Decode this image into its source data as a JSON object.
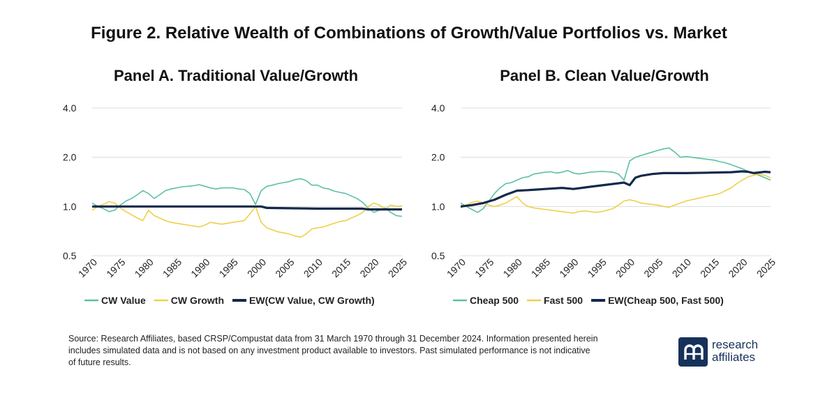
{
  "figure_title": "Figure 2. Relative Wealth of Combinations of Growth/Value Portfolios vs. Market",
  "source_note": "Source: Research Affiliates, based CRSP/Compustat data from 31 March 1970 through 31 December 2024. Information presented herein includes simulated data and is not based on any investment product available to investors. Past simulated performance is not indicative of future results.",
  "logo": {
    "line1": "research",
    "line2": "affiliates",
    "mark": "ꭆ"
  },
  "chart_data": [
    {
      "type": "line",
      "title": "Panel A. Traditional Value/Growth",
      "y_scale": "log",
      "ylim": [
        0.5,
        4.0
      ],
      "yticks": [
        {
          "v": 0.5,
          "label": "0.5"
        },
        {
          "v": 1.0,
          "label": "1.0"
        },
        {
          "v": 2.0,
          "label": "2.0"
        },
        {
          "v": 4.0,
          "label": "4.0"
        }
      ],
      "xlim": [
        1970,
        2025
      ],
      "xticks": [
        "1970",
        "1975",
        "1980",
        "1985",
        "1990",
        "1995",
        "2000",
        "2005",
        "2010",
        "2015",
        "2020",
        "2025"
      ],
      "legend_position": "bottom",
      "series": [
        {
          "name": "CW Value",
          "color": "#5cbfa6",
          "width": 1.6,
          "x": [
            1970,
            1971,
            1972,
            1973,
            1974,
            1975,
            1976,
            1977,
            1978,
            1979,
            1980,
            1981,
            1982,
            1983,
            1984,
            1985,
            1986,
            1987,
            1988,
            1989,
            1990,
            1991,
            1992,
            1993,
            1994,
            1995,
            1996,
            1997,
            1998,
            1999,
            2000,
            2001,
            2002,
            2003,
            2004,
            2005,
            2006,
            2007,
            2008,
            2009,
            2010,
            2011,
            2012,
            2013,
            2014,
            2015,
            2016,
            2017,
            2018,
            2019,
            2020,
            2021,
            2022,
            2023,
            2024,
            2025
          ],
          "y": [
            1.05,
            1.0,
            0.97,
            0.93,
            0.95,
            1.02,
            1.08,
            1.12,
            1.18,
            1.25,
            1.2,
            1.12,
            1.18,
            1.25,
            1.28,
            1.3,
            1.32,
            1.33,
            1.34,
            1.36,
            1.33,
            1.3,
            1.28,
            1.3,
            1.3,
            1.3,
            1.28,
            1.27,
            1.2,
            1.03,
            1.25,
            1.33,
            1.35,
            1.38,
            1.4,
            1.42,
            1.46,
            1.48,
            1.44,
            1.35,
            1.35,
            1.3,
            1.28,
            1.24,
            1.22,
            1.2,
            1.16,
            1.12,
            1.06,
            0.98,
            0.92,
            0.95,
            0.98,
            0.92,
            0.88,
            0.87
          ]
        },
        {
          "name": "CW Growth",
          "color": "#eed04a",
          "width": 1.6,
          "x": [
            1970,
            1971,
            1972,
            1973,
            1974,
            1975,
            1976,
            1977,
            1978,
            1979,
            1980,
            1981,
            1982,
            1983,
            1984,
            1985,
            1986,
            1987,
            1988,
            1989,
            1990,
            1991,
            1992,
            1993,
            1994,
            1995,
            1996,
            1997,
            1998,
            1999,
            2000,
            2001,
            2002,
            2003,
            2004,
            2005,
            2006,
            2007,
            2008,
            2009,
            2010,
            2011,
            2012,
            2013,
            2014,
            2015,
            2016,
            2017,
            2018,
            2019,
            2020,
            2021,
            2022,
            2023,
            2024,
            2025
          ],
          "y": [
            0.95,
            1.0,
            1.03,
            1.07,
            1.05,
            0.98,
            0.93,
            0.89,
            0.85,
            0.82,
            0.95,
            0.88,
            0.85,
            0.82,
            0.8,
            0.79,
            0.78,
            0.77,
            0.76,
            0.75,
            0.77,
            0.8,
            0.79,
            0.78,
            0.79,
            0.8,
            0.81,
            0.82,
            0.9,
            1.0,
            0.8,
            0.74,
            0.72,
            0.7,
            0.69,
            0.68,
            0.66,
            0.65,
            0.68,
            0.73,
            0.74,
            0.75,
            0.77,
            0.79,
            0.81,
            0.82,
            0.85,
            0.88,
            0.92,
            1.0,
            1.05,
            1.02,
            0.96,
            1.02,
            1.0,
            1.01
          ]
        },
        {
          "name": "EW(CW Value, CW Growth)",
          "color": "#13294b",
          "width": 3.2,
          "x": [
            1970,
            1980,
            1990,
            2000,
            2001,
            2010,
            2018,
            2019,
            2025
          ],
          "y": [
            1.0,
            1.0,
            1.0,
            1.0,
            0.98,
            0.97,
            0.97,
            0.96,
            0.96
          ]
        }
      ]
    },
    {
      "type": "line",
      "title": "Panel B. Clean Value/Growth",
      "y_scale": "log",
      "ylim": [
        0.5,
        4.0
      ],
      "yticks": [
        {
          "v": 0.5,
          "label": "0.5"
        },
        {
          "v": 1.0,
          "label": "1.0"
        },
        {
          "v": 2.0,
          "label": "2.0"
        },
        {
          "v": 4.0,
          "label": "4.0"
        }
      ],
      "xlim": [
        1970,
        2025
      ],
      "xticks": [
        "1970",
        "1975",
        "1980",
        "1985",
        "1990",
        "1995",
        "2000",
        "2005",
        "2010",
        "2015",
        "2020",
        "2025"
      ],
      "legend_position": "bottom",
      "series": [
        {
          "name": "Cheap 500",
          "color": "#5cbfa6",
          "width": 1.6,
          "x": [
            1970,
            1971,
            1972,
            1973,
            1974,
            1975,
            1976,
            1977,
            1978,
            1979,
            1980,
            1981,
            1982,
            1983,
            1984,
            1985,
            1986,
            1987,
            1988,
            1989,
            1990,
            1991,
            1992,
            1993,
            1994,
            1995,
            1996,
            1997,
            1998,
            1999,
            2000,
            2001,
            2002,
            2003,
            2004,
            2005,
            2006,
            2007,
            2008,
            2009,
            2010,
            2011,
            2012,
            2013,
            2014,
            2015,
            2016,
            2017,
            2018,
            2019,
            2020,
            2021,
            2022,
            2023,
            2024,
            2025
          ],
          "y": [
            1.05,
            1.0,
            0.96,
            0.92,
            0.97,
            1.08,
            1.2,
            1.3,
            1.38,
            1.4,
            1.45,
            1.5,
            1.52,
            1.58,
            1.6,
            1.62,
            1.63,
            1.6,
            1.62,
            1.66,
            1.6,
            1.58,
            1.6,
            1.62,
            1.63,
            1.64,
            1.63,
            1.62,
            1.58,
            1.45,
            1.9,
            2.0,
            2.05,
            2.1,
            2.15,
            2.2,
            2.25,
            2.28,
            2.15,
            2.0,
            2.02,
            2.0,
            1.98,
            1.96,
            1.94,
            1.92,
            1.88,
            1.85,
            1.8,
            1.75,
            1.7,
            1.64,
            1.6,
            1.55,
            1.5,
            1.45
          ]
        },
        {
          "name": "Fast 500",
          "color": "#eed04a",
          "width": 1.6,
          "x": [
            1970,
            1971,
            1972,
            1973,
            1974,
            1975,
            1976,
            1977,
            1978,
            1979,
            1980,
            1981,
            1982,
            1983,
            1984,
            1985,
            1986,
            1987,
            1988,
            1989,
            1990,
            1991,
            1992,
            1993,
            1994,
            1995,
            1996,
            1997,
            1998,
            1999,
            2000,
            2001,
            2002,
            2003,
            2004,
            2005,
            2006,
            2007,
            2008,
            2009,
            2010,
            2011,
            2012,
            2013,
            2014,
            2015,
            2016,
            2017,
            2018,
            2019,
            2020,
            2021,
            2022,
            2023,
            2024,
            2025
          ],
          "y": [
            0.98,
            1.02,
            1.06,
            1.08,
            1.05,
            1.02,
            1.0,
            1.02,
            1.05,
            1.1,
            1.15,
            1.05,
            1.0,
            0.98,
            0.97,
            0.96,
            0.95,
            0.94,
            0.93,
            0.92,
            0.91,
            0.93,
            0.94,
            0.93,
            0.92,
            0.93,
            0.95,
            0.97,
            1.02,
            1.08,
            1.1,
            1.08,
            1.05,
            1.04,
            1.03,
            1.02,
            1.0,
            0.99,
            1.02,
            1.05,
            1.08,
            1.1,
            1.12,
            1.14,
            1.16,
            1.18,
            1.2,
            1.25,
            1.3,
            1.38,
            1.45,
            1.52,
            1.55,
            1.58,
            1.55,
            1.5
          ]
        },
        {
          "name": "EW(Cheap 500, Fast 500)",
          "color": "#13294b",
          "width": 3.2,
          "x": [
            1970,
            1972,
            1974,
            1976,
            1978,
            1980,
            1982,
            1985,
            1988,
            1990,
            1993,
            1996,
            1999,
            2000,
            2001,
            2002,
            2004,
            2006,
            2010,
            2014,
            2018,
            2020,
            2021,
            2022,
            2024,
            2025
          ],
          "y": [
            1.0,
            1.02,
            1.05,
            1.1,
            1.18,
            1.25,
            1.26,
            1.28,
            1.3,
            1.28,
            1.32,
            1.36,
            1.4,
            1.35,
            1.5,
            1.54,
            1.58,
            1.6,
            1.6,
            1.61,
            1.62,
            1.64,
            1.63,
            1.6,
            1.63,
            1.62
          ]
        }
      ]
    }
  ]
}
